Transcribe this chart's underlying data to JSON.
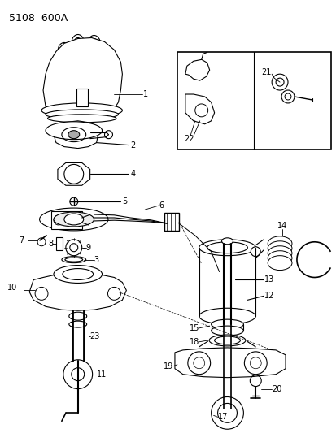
{
  "title": "5108  600A",
  "bg_color": "#ffffff",
  "line_color": "#000000",
  "fig_width": 4.14,
  "fig_height": 5.33,
  "dpi": 100
}
